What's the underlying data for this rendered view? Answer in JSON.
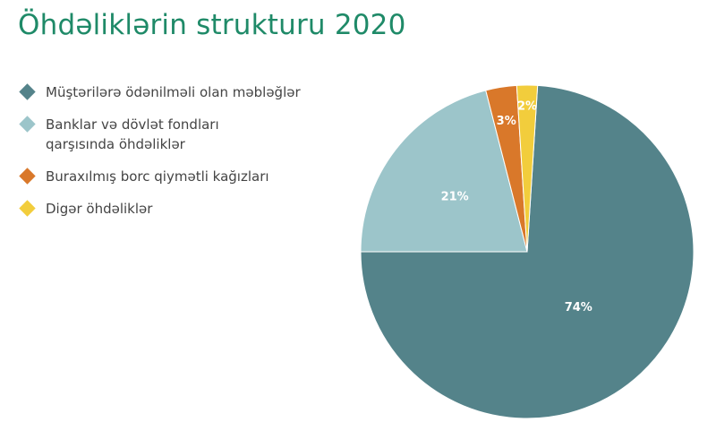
{
  "chart_data": {
    "type": "pie",
    "title": "Öhdəliklərin strukturu 2020",
    "legend_position": "left",
    "series": [
      {
        "name": "Müştərilərə ödənilməli olan məbləğlər",
        "value": 74,
        "label": "74%",
        "color": "#54838a"
      },
      {
        "name": "Banklar və dövlət fondları qarşısında öhdəliklər",
        "value": 21,
        "label": "21%",
        "color": "#9cc5ca"
      },
      {
        "name": "Buraxılmış borc qiymətli kağızları",
        "value": 3,
        "label": "3%",
        "color": "#d9782a"
      },
      {
        "name": "Digər öhdəliklər",
        "value": 2,
        "label": "2%",
        "color": "#f2cd3c"
      }
    ]
  }
}
